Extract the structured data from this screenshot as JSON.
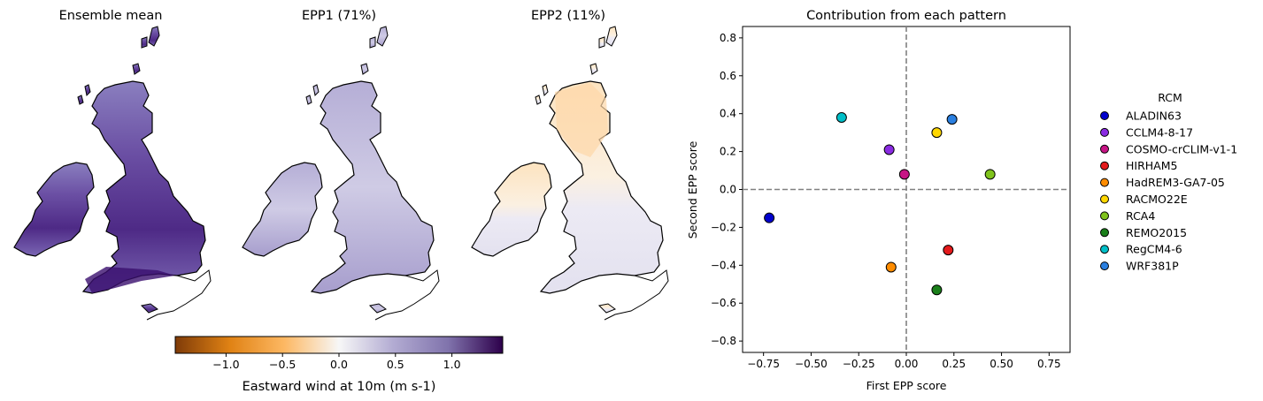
{
  "maps": [
    {
      "title": "Ensemble mean",
      "palette": "strong-purple"
    },
    {
      "title": "EPP1 (71%)",
      "palette": "light-purple"
    },
    {
      "title": "EPP2 (11%)",
      "palette": "orange-north"
    }
  ],
  "colorbar": {
    "label": "Eastward wind at 10m (m s-1)",
    "range": [
      -1.45,
      1.45
    ],
    "ticks": [
      -1.0,
      -0.5,
      0.0,
      0.5,
      1.0
    ],
    "tick_labels": [
      "−1.0",
      "−0.5",
      "0.0",
      "0.5",
      "1.0"
    ],
    "colormap": "PuOr",
    "colors": [
      "#7f3b08",
      "#e08214",
      "#fdb863",
      "#f7f7f7",
      "#b2abd2",
      "#8073ac",
      "#2d004b"
    ]
  },
  "chart_data": {
    "type": "scatter",
    "title": "Contribution from each pattern",
    "xlabel": "First EPP score",
    "ylabel": "Second EPP score",
    "xlim": [
      -0.86,
      0.86
    ],
    "ylim": [
      -0.86,
      0.86
    ],
    "xticks": [
      -0.75,
      -0.5,
      -0.25,
      0.0,
      0.25,
      0.5,
      0.75
    ],
    "xtick_labels": [
      "−0.75",
      "−0.50",
      "−0.25",
      "0.00",
      "0.25",
      "0.50",
      "0.75"
    ],
    "yticks": [
      -0.8,
      -0.6,
      -0.4,
      -0.2,
      0.0,
      0.2,
      0.4,
      0.6,
      0.8
    ],
    "ytick_labels": [
      "−0.8",
      "−0.6",
      "−0.4",
      "−0.2",
      "0.0",
      "0.2",
      "0.4",
      "0.6",
      "0.8"
    ],
    "grid": false,
    "reference_lines": {
      "x": 0,
      "y": 0,
      "style": "dashed",
      "color": "#808080"
    },
    "legend": {
      "title": "RCM",
      "placement": "right-outside"
    },
    "series": [
      {
        "name": "ALADIN63",
        "x": -0.72,
        "y": -0.15,
        "color": "#0000cd"
      },
      {
        "name": "CCLM4-8-17",
        "x": -0.09,
        "y": 0.21,
        "color": "#8a2be2"
      },
      {
        "name": "COSMO-crCLIM-v1-1",
        "x": -0.01,
        "y": 0.08,
        "color": "#c71585"
      },
      {
        "name": "HIRHAM5",
        "x": 0.22,
        "y": -0.32,
        "color": "#e41a1c"
      },
      {
        "name": "HadREM3-GA7-05",
        "x": -0.08,
        "y": -0.41,
        "color": "#ff8c00"
      },
      {
        "name": "RACMO22E",
        "x": 0.16,
        "y": 0.3,
        "color": "#ffd700"
      },
      {
        "name": "RCA4",
        "x": 0.44,
        "y": 0.08,
        "color": "#7fc31c"
      },
      {
        "name": "REMO2015",
        "x": 0.16,
        "y": -0.53,
        "color": "#1a7f1a"
      },
      {
        "name": "RegCM4-6",
        "x": -0.34,
        "y": 0.38,
        "color": "#00bfc8"
      },
      {
        "name": "WRF381P",
        "x": 0.24,
        "y": 0.37,
        "color": "#2a7fe0"
      }
    ]
  }
}
